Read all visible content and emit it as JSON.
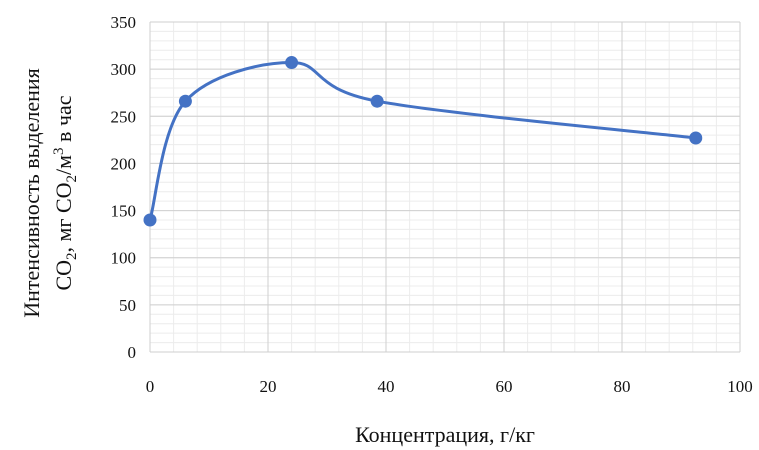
{
  "chart_data": {
    "type": "line",
    "title": "",
    "xlabel": "Концентрация, г/кг",
    "ylabel": {
      "line1": "Интенсивность выделения",
      "line2_parts": [
        "CO",
        "2",
        ", мг CO",
        "2",
        "/м",
        "3",
        " в час"
      ]
    },
    "xlim": [
      0,
      100
    ],
    "ylim": [
      0,
      350
    ],
    "x_ticks": [
      0,
      20,
      40,
      60,
      80,
      100
    ],
    "y_ticks": [
      0,
      50,
      100,
      150,
      200,
      250,
      300,
      350
    ],
    "grid": true,
    "minor_grid": true,
    "smooth": true,
    "series": [
      {
        "color": "#4472C4",
        "points": [
          {
            "x": 0,
            "y": 140
          },
          {
            "x": 6,
            "y": 266
          },
          {
            "x": 24,
            "y": 307
          },
          {
            "x": 38.5,
            "y": 266
          },
          {
            "x": 92.5,
            "y": 227
          }
        ]
      }
    ]
  }
}
